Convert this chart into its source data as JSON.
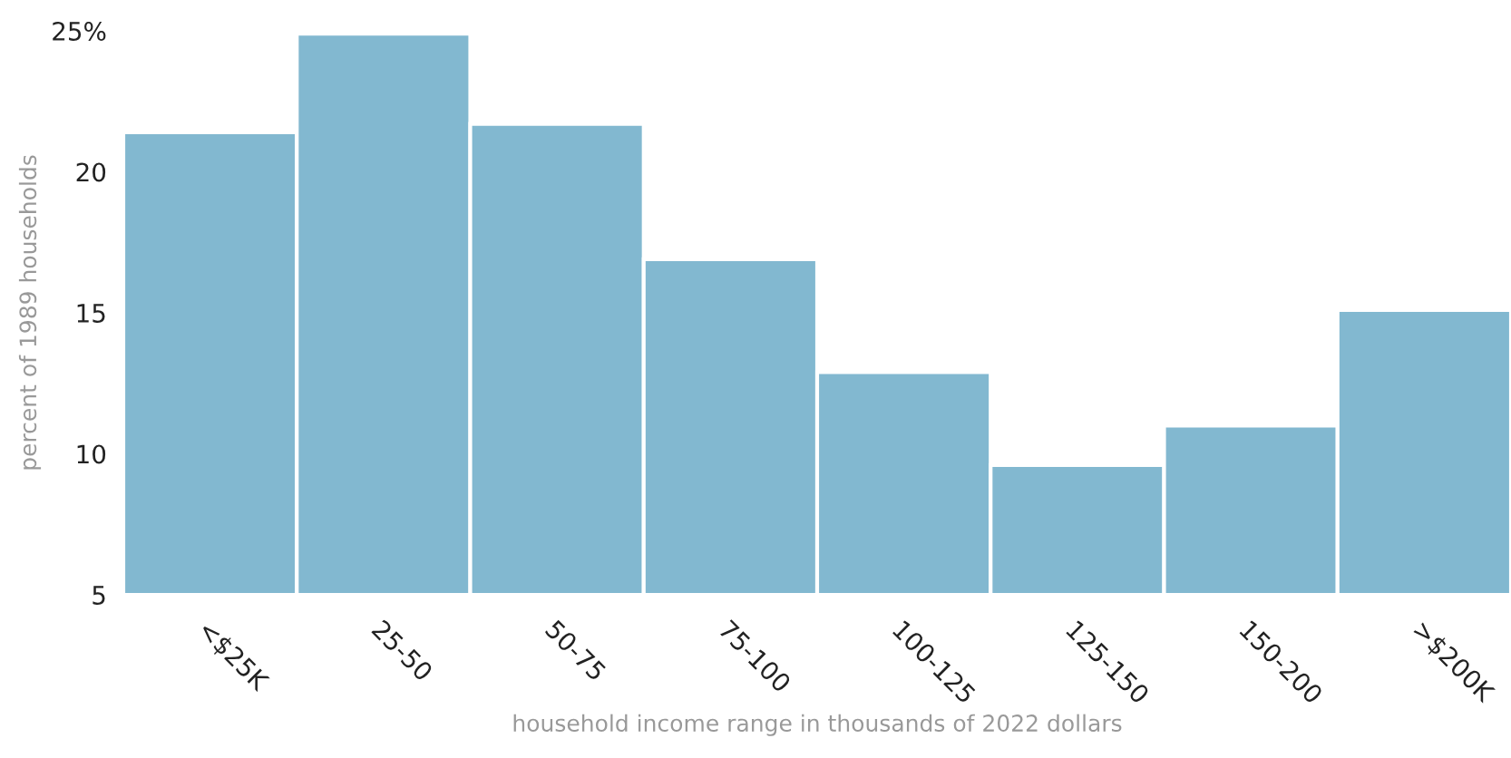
{
  "chart_data": {
    "type": "bar",
    "xlabel": "household income range in thousands of 2022 dollars",
    "ylabel": "percent of 1989 households",
    "categories": [
      "<$25K",
      "25-50",
      "50-75",
      "75-100",
      "100-125",
      "125-150",
      "150-200",
      ">$200K"
    ],
    "values": [
      21.4,
      24.9,
      21.7,
      16.9,
      12.9,
      9.6,
      11.0,
      15.1
    ],
    "color": "#82b8d0",
    "ylim": [
      5,
      25
    ],
    "yticks": [
      5,
      10,
      15,
      20,
      {
        "value": 25,
        "label": "25%"
      }
    ],
    "grid": false
  }
}
